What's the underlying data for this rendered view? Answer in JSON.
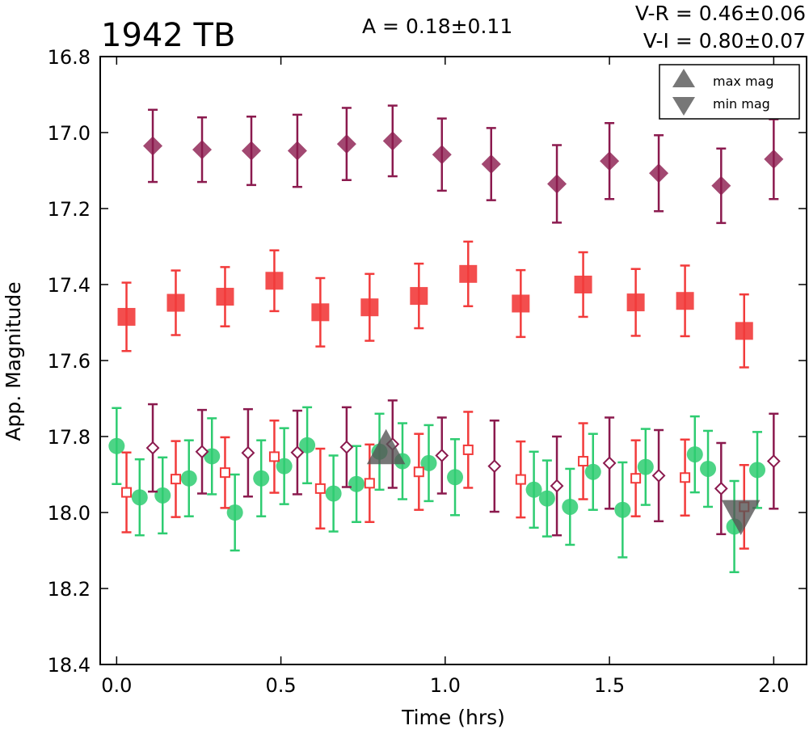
{
  "chart_data": {
    "type": "scatter",
    "title": "1942 TB",
    "annotations": {
      "amplitude": "A  = 0.18±0.11",
      "v_r": "V-R = 0.46±0.06",
      "v_i": "V-I  = 0.80±0.07"
    },
    "xlabel": "Time (hrs)",
    "ylabel": "App. Magnitude",
    "xlim": [
      -0.05,
      2.1
    ],
    "ylim": [
      18.4,
      16.8
    ],
    "y_inverted": true,
    "grid": false,
    "xticks": [
      "0.0",
      "0.5",
      "1.0",
      "1.5",
      "2.0"
    ],
    "xtick_values": [
      0.0,
      0.5,
      1.0,
      1.5,
      2.0
    ],
    "yticks": [
      "16.8",
      "17.0",
      "17.2",
      "17.4",
      "17.6",
      "17.8",
      "18.0",
      "18.2",
      "18.4"
    ],
    "ytick_values": [
      16.8,
      17.0,
      17.2,
      17.4,
      17.6,
      17.8,
      18.0,
      18.2,
      18.4
    ],
    "legend": {
      "placement": "top-right",
      "entries": [
        {
          "label": "max mag",
          "marker": "triangle-up",
          "color": "#555555"
        },
        {
          "label": "min mag",
          "marker": "triangle-down",
          "color": "#555555"
        }
      ]
    },
    "series": [
      {
        "marker": "diamond-filled",
        "color": "#8B1A4E",
        "points": [
          {
            "x": 0.11,
            "y": 17.035,
            "err": 0.095
          },
          {
            "x": 0.26,
            "y": 17.045,
            "err": 0.085
          },
          {
            "x": 0.41,
            "y": 17.048,
            "err": 0.09
          },
          {
            "x": 0.55,
            "y": 17.048,
            "err": 0.095
          },
          {
            "x": 0.7,
            "y": 17.03,
            "err": 0.095
          },
          {
            "x": 0.84,
            "y": 17.022,
            "err": 0.093
          },
          {
            "x": 0.99,
            "y": 17.058,
            "err": 0.095
          },
          {
            "x": 1.14,
            "y": 17.083,
            "err": 0.095
          },
          {
            "x": 1.34,
            "y": 17.135,
            "err": 0.102
          },
          {
            "x": 1.5,
            "y": 17.075,
            "err": 0.1
          },
          {
            "x": 1.65,
            "y": 17.107,
            "err": 0.1
          },
          {
            "x": 1.84,
            "y": 17.14,
            "err": 0.098
          },
          {
            "x": 2.0,
            "y": 17.07,
            "err": 0.105
          }
        ]
      },
      {
        "marker": "square-filled",
        "color": "#F23B3B",
        "points": [
          {
            "x": 0.03,
            "y": 17.485,
            "err": 0.09
          },
          {
            "x": 0.18,
            "y": 17.448,
            "err": 0.085
          },
          {
            "x": 0.33,
            "y": 17.432,
            "err": 0.078
          },
          {
            "x": 0.48,
            "y": 17.39,
            "err": 0.08
          },
          {
            "x": 0.62,
            "y": 17.473,
            "err": 0.09
          },
          {
            "x": 0.77,
            "y": 17.46,
            "err": 0.088
          },
          {
            "x": 0.92,
            "y": 17.43,
            "err": 0.085
          },
          {
            "x": 1.07,
            "y": 17.372,
            "err": 0.085
          },
          {
            "x": 1.23,
            "y": 17.45,
            "err": 0.088
          },
          {
            "x": 1.42,
            "y": 17.4,
            "err": 0.085
          },
          {
            "x": 1.58,
            "y": 17.447,
            "err": 0.088
          },
          {
            "x": 1.73,
            "y": 17.443,
            "err": 0.093
          },
          {
            "x": 1.91,
            "y": 17.522,
            "err": 0.096
          }
        ]
      },
      {
        "marker": "circle-filled",
        "color": "#2ECC71",
        "points": [
          {
            "x": 0.0,
            "y": 17.825,
            "err": 0.1
          },
          {
            "x": 0.07,
            "y": 17.96,
            "err": 0.1
          },
          {
            "x": 0.14,
            "y": 17.955,
            "err": 0.1
          },
          {
            "x": 0.22,
            "y": 17.91,
            "err": 0.1
          },
          {
            "x": 0.29,
            "y": 17.852,
            "err": 0.1
          },
          {
            "x": 0.36,
            "y": 18.0,
            "err": 0.1
          },
          {
            "x": 0.44,
            "y": 17.91,
            "err": 0.1
          },
          {
            "x": 0.51,
            "y": 17.878,
            "err": 0.1
          },
          {
            "x": 0.58,
            "y": 17.823,
            "err": 0.1
          },
          {
            "x": 0.66,
            "y": 17.95,
            "err": 0.1
          },
          {
            "x": 0.73,
            "y": 17.925,
            "err": 0.1
          },
          {
            "x": 0.8,
            "y": 17.84,
            "err": 0.1
          },
          {
            "x": 0.87,
            "y": 17.865,
            "err": 0.1
          },
          {
            "x": 0.95,
            "y": 17.87,
            "err": 0.1
          },
          {
            "x": 1.03,
            "y": 17.907,
            "err": 0.1
          },
          {
            "x": 1.27,
            "y": 17.94,
            "err": 0.1
          },
          {
            "x": 1.31,
            "y": 17.963,
            "err": 0.1
          },
          {
            "x": 1.38,
            "y": 17.985,
            "err": 0.1
          },
          {
            "x": 1.45,
            "y": 17.893,
            "err": 0.1
          },
          {
            "x": 1.54,
            "y": 17.993,
            "err": 0.125
          },
          {
            "x": 1.61,
            "y": 17.88,
            "err": 0.1
          },
          {
            "x": 1.76,
            "y": 17.847,
            "err": 0.1
          },
          {
            "x": 1.8,
            "y": 17.885,
            "err": 0.1
          },
          {
            "x": 1.88,
            "y": 18.037,
            "err": 0.12
          },
          {
            "x": 1.95,
            "y": 17.888,
            "err": 0.1
          }
        ]
      },
      {
        "marker": "diamond-open",
        "color": "#8B1A4E",
        "points": [
          {
            "x": 0.11,
            "y": 17.83,
            "err": 0.115
          },
          {
            "x": 0.26,
            "y": 17.84,
            "err": 0.11
          },
          {
            "x": 0.4,
            "y": 17.843,
            "err": 0.115
          },
          {
            "x": 0.55,
            "y": 17.842,
            "err": 0.11
          },
          {
            "x": 0.7,
            "y": 17.828,
            "err": 0.105
          },
          {
            "x": 0.84,
            "y": 17.82,
            "err": 0.115
          },
          {
            "x": 0.99,
            "y": 17.85,
            "err": 0.1
          },
          {
            "x": 1.15,
            "y": 17.878,
            "err": 0.12
          },
          {
            "x": 1.34,
            "y": 17.93,
            "err": 0.13
          },
          {
            "x": 1.5,
            "y": 17.87,
            "err": 0.12
          },
          {
            "x": 1.65,
            "y": 17.903,
            "err": 0.12
          },
          {
            "x": 1.84,
            "y": 17.937,
            "err": 0.12
          },
          {
            "x": 2.0,
            "y": 17.865,
            "err": 0.125
          }
        ]
      },
      {
        "marker": "square-open",
        "color": "#F23B3B",
        "points": [
          {
            "x": 0.03,
            "y": 17.947,
            "err": 0.105
          },
          {
            "x": 0.18,
            "y": 17.912,
            "err": 0.1
          },
          {
            "x": 0.33,
            "y": 17.895,
            "err": 0.093
          },
          {
            "x": 0.48,
            "y": 17.853,
            "err": 0.095
          },
          {
            "x": 0.62,
            "y": 17.937,
            "err": 0.105
          },
          {
            "x": 0.77,
            "y": 17.923,
            "err": 0.102
          },
          {
            "x": 0.92,
            "y": 17.893,
            "err": 0.1
          },
          {
            "x": 1.07,
            "y": 17.835,
            "err": 0.1
          },
          {
            "x": 1.23,
            "y": 17.913,
            "err": 0.1
          },
          {
            "x": 1.42,
            "y": 17.865,
            "err": 0.1
          },
          {
            "x": 1.58,
            "y": 17.91,
            "err": 0.1
          },
          {
            "x": 1.73,
            "y": 17.908,
            "err": 0.1
          },
          {
            "x": 1.91,
            "y": 17.985,
            "err": 0.11
          }
        ]
      }
    ],
    "markers": [
      {
        "label": "max mag",
        "marker": "triangle-up",
        "color": "#555555",
        "x": 0.82,
        "y": 17.84
      },
      {
        "label": "min mag",
        "marker": "triangle-down",
        "color": "#555555",
        "x": 1.9,
        "y": 18.0
      }
    ]
  }
}
